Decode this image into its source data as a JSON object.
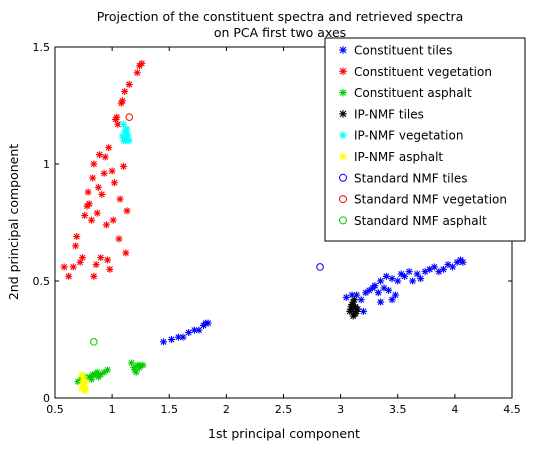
{
  "chart_data": {
    "type": "scatter",
    "title_lines": [
      "Projection of the constituent spectra and retrieved spectra",
      "on PCA first two axes"
    ],
    "xlabel": "1st principal component",
    "ylabel": "2nd principal component",
    "xlim": [
      0.5,
      4.5
    ],
    "ylim": [
      0,
      1.5
    ],
    "xticks": [
      "0.5",
      "1",
      "1.5",
      "2",
      "2.5",
      "3",
      "3.5",
      "4",
      "4.5"
    ],
    "yticks": [
      "0",
      "0.5",
      "1",
      "1.5"
    ],
    "grid": false,
    "legend_position": "top-right",
    "series": [
      {
        "name": "Constituent tiles",
        "marker": "star",
        "color": "#0000ff",
        "points": [
          [
            1.45,
            0.24
          ],
          [
            1.52,
            0.25
          ],
          [
            1.58,
            0.26
          ],
          [
            1.62,
            0.26
          ],
          [
            1.67,
            0.28
          ],
          [
            1.72,
            0.29
          ],
          [
            1.76,
            0.29
          ],
          [
            1.8,
            0.31
          ],
          [
            1.82,
            0.32
          ],
          [
            1.84,
            0.32
          ],
          [
            3.05,
            0.43
          ],
          [
            3.1,
            0.44
          ],
          [
            3.14,
            0.44
          ],
          [
            3.18,
            0.42
          ],
          [
            3.22,
            0.45
          ],
          [
            3.25,
            0.46
          ],
          [
            3.28,
            0.47
          ],
          [
            3.3,
            0.48
          ],
          [
            3.33,
            0.45
          ],
          [
            3.35,
            0.5
          ],
          [
            3.38,
            0.47
          ],
          [
            3.4,
            0.52
          ],
          [
            3.42,
            0.46
          ],
          [
            3.45,
            0.51
          ],
          [
            3.48,
            0.44
          ],
          [
            3.5,
            0.5
          ],
          [
            3.53,
            0.53
          ],
          [
            3.56,
            0.52
          ],
          [
            3.6,
            0.54
          ],
          [
            3.63,
            0.5
          ],
          [
            3.67,
            0.53
          ],
          [
            3.7,
            0.51
          ],
          [
            3.74,
            0.54
          ],
          [
            3.78,
            0.55
          ],
          [
            3.82,
            0.56
          ],
          [
            3.86,
            0.54
          ],
          [
            3.9,
            0.55
          ],
          [
            3.94,
            0.57
          ],
          [
            3.98,
            0.56
          ],
          [
            4.02,
            0.58
          ],
          [
            4.05,
            0.59
          ],
          [
            4.07,
            0.58
          ],
          [
            3.2,
            0.37
          ],
          [
            3.35,
            0.41
          ],
          [
            3.45,
            0.42
          ]
        ]
      },
      {
        "name": "Constituent vegetation",
        "marker": "star",
        "color": "#ff0000",
        "points": [
          [
            0.58,
            0.56
          ],
          [
            0.62,
            0.52
          ],
          [
            0.66,
            0.56
          ],
          [
            0.68,
            0.65
          ],
          [
            0.69,
            0.69
          ],
          [
            0.72,
            0.58
          ],
          [
            0.74,
            0.6
          ],
          [
            0.76,
            0.78
          ],
          [
            0.78,
            0.82
          ],
          [
            0.79,
            0.88
          ],
          [
            0.8,
            0.83
          ],
          [
            0.82,
            0.76
          ],
          [
            0.83,
            0.94
          ],
          [
            0.84,
            1.0
          ],
          [
            0.84,
            0.52
          ],
          [
            0.86,
            0.57
          ],
          [
            0.87,
            0.79
          ],
          [
            0.88,
            0.9
          ],
          [
            0.89,
            1.04
          ],
          [
            0.9,
            0.6
          ],
          [
            0.91,
            0.87
          ],
          [
            0.93,
            0.96
          ],
          [
            0.94,
            1.03
          ],
          [
            0.95,
            0.74
          ],
          [
            0.96,
            0.59
          ],
          [
            0.97,
            1.07
          ],
          [
            0.98,
            0.55
          ],
          [
            1.0,
            0.97
          ],
          [
            1.01,
            0.76
          ],
          [
            1.02,
            0.92
          ],
          [
            1.03,
            1.19
          ],
          [
            1.04,
            1.2
          ],
          [
            1.05,
            1.17
          ],
          [
            1.06,
            0.68
          ],
          [
            1.07,
            0.85
          ],
          [
            1.08,
            1.26
          ],
          [
            1.09,
            1.27
          ],
          [
            1.1,
            0.99
          ],
          [
            1.11,
            1.31
          ],
          [
            1.13,
            0.8
          ],
          [
            1.15,
            1.34
          ],
          [
            1.22,
            1.39
          ],
          [
            1.24,
            1.42
          ],
          [
            1.26,
            1.43
          ],
          [
            1.12,
            0.62
          ]
        ]
      },
      {
        "name": "Constituent asphalt",
        "marker": "star",
        "color": "#00cc00",
        "points": [
          [
            0.7,
            0.07
          ],
          [
            0.73,
            0.08
          ],
          [
            0.76,
            0.09
          ],
          [
            0.8,
            0.09
          ],
          [
            0.83,
            0.1
          ],
          [
            0.85,
            0.1
          ],
          [
            0.87,
            0.11
          ],
          [
            0.9,
            0.1
          ],
          [
            0.93,
            0.11
          ],
          [
            0.96,
            0.12
          ],
          [
            0.82,
            0.08
          ],
          [
            0.88,
            0.09
          ],
          [
            1.17,
            0.15
          ],
          [
            1.19,
            0.13
          ],
          [
            1.2,
            0.12
          ],
          [
            1.22,
            0.14
          ],
          [
            1.24,
            0.13
          ],
          [
            1.25,
            0.14
          ],
          [
            1.27,
            0.14
          ],
          [
            1.21,
            0.11
          ]
        ]
      },
      {
        "name": "IP-NMF tiles",
        "marker": "star",
        "color": "#000000",
        "points": [
          [
            3.08,
            0.37
          ],
          [
            3.1,
            0.38
          ],
          [
            3.12,
            0.36
          ],
          [
            3.13,
            0.39
          ],
          [
            3.14,
            0.37
          ],
          [
            3.1,
            0.4
          ],
          [
            3.15,
            0.38
          ],
          [
            3.11,
            0.41
          ],
          [
            3.12,
            0.42
          ],
          [
            3.09,
            0.39
          ],
          [
            3.13,
            0.36
          ],
          [
            3.11,
            0.35
          ]
        ]
      },
      {
        "name": "IP-NMF vegetation",
        "marker": "star",
        "color": "#00ffff",
        "points": [
          [
            1.1,
            1.1
          ],
          [
            1.12,
            1.11
          ],
          [
            1.14,
            1.12
          ],
          [
            1.11,
            1.14
          ],
          [
            1.13,
            1.15
          ],
          [
            1.1,
            1.17
          ],
          [
            1.12,
            1.1
          ],
          [
            1.15,
            1.1
          ],
          [
            1.13,
            1.13
          ],
          [
            1.09,
            1.12
          ]
        ]
      },
      {
        "name": "IP-NMF asphalt",
        "marker": "star",
        "color": "#ffff00",
        "points": [
          [
            0.73,
            0.04
          ],
          [
            0.75,
            0.05
          ],
          [
            0.77,
            0.04
          ],
          [
            0.76,
            0.06
          ],
          [
            0.74,
            0.07
          ],
          [
            0.75,
            0.09
          ],
          [
            0.73,
            0.1
          ],
          [
            0.77,
            0.07
          ],
          [
            0.74,
            0.05
          ],
          [
            0.76,
            0.03
          ]
        ]
      },
      {
        "name": "Standard NMF tiles",
        "marker": "circle",
        "color": "#0000ff",
        "points": [
          [
            2.82,
            0.56
          ]
        ]
      },
      {
        "name": "Standard NMF vegetation",
        "marker": "circle",
        "color": "#ff0000",
        "points": [
          [
            1.15,
            1.2
          ]
        ]
      },
      {
        "name": "Standard NMF asphalt",
        "marker": "circle",
        "color": "#00cc00",
        "points": [
          [
            0.84,
            0.24
          ]
        ]
      }
    ]
  }
}
